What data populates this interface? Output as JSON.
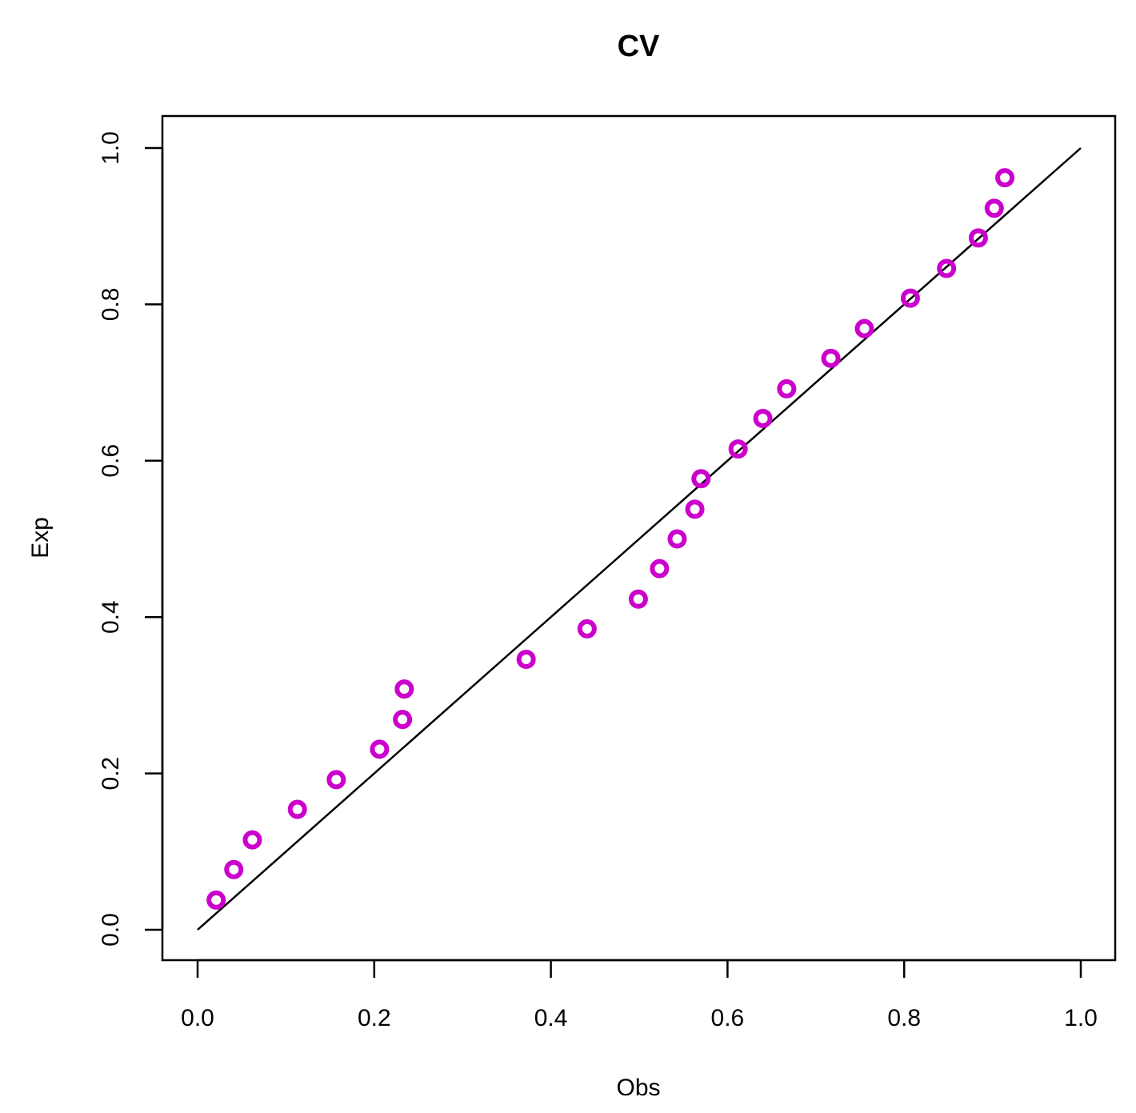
{
  "chart_data": {
    "type": "scatter",
    "title": "CV",
    "xlabel": "Obs",
    "ylabel": "Exp",
    "xlim": [
      0,
      1
    ],
    "ylim": [
      0,
      1
    ],
    "xticks": [
      "0.0",
      "0.2",
      "0.4",
      "0.6",
      "0.8",
      "1.0"
    ],
    "yticks": [
      "0.0",
      "0.2",
      "0.4",
      "0.6",
      "0.8",
      "1.0"
    ],
    "grid": false,
    "reference_line": {
      "x": [
        0,
        1
      ],
      "y": [
        0,
        1
      ],
      "color": "#000000"
    },
    "series": [
      {
        "color": "#cc00cc",
        "marker": "open-circle",
        "points": [
          {
            "x": 0.021,
            "y": 0.038
          },
          {
            "x": 0.041,
            "y": 0.077
          },
          {
            "x": 0.062,
            "y": 0.115
          },
          {
            "x": 0.113,
            "y": 0.154
          },
          {
            "x": 0.157,
            "y": 0.192
          },
          {
            "x": 0.206,
            "y": 0.231
          },
          {
            "x": 0.232,
            "y": 0.269
          },
          {
            "x": 0.234,
            "y": 0.308
          },
          {
            "x": 0.372,
            "y": 0.346
          },
          {
            "x": 0.441,
            "y": 0.385
          },
          {
            "x": 0.499,
            "y": 0.423
          },
          {
            "x": 0.523,
            "y": 0.462
          },
          {
            "x": 0.543,
            "y": 0.5
          },
          {
            "x": 0.563,
            "y": 0.538
          },
          {
            "x": 0.57,
            "y": 0.577
          },
          {
            "x": 0.612,
            "y": 0.615
          },
          {
            "x": 0.64,
            "y": 0.654
          },
          {
            "x": 0.667,
            "y": 0.692
          },
          {
            "x": 0.717,
            "y": 0.731
          },
          {
            "x": 0.755,
            "y": 0.769
          },
          {
            "x": 0.807,
            "y": 0.808
          },
          {
            "x": 0.848,
            "y": 0.846
          },
          {
            "x": 0.884,
            "y": 0.885
          },
          {
            "x": 0.902,
            "y": 0.923
          },
          {
            "x": 0.914,
            "y": 0.962
          }
        ]
      }
    ]
  }
}
